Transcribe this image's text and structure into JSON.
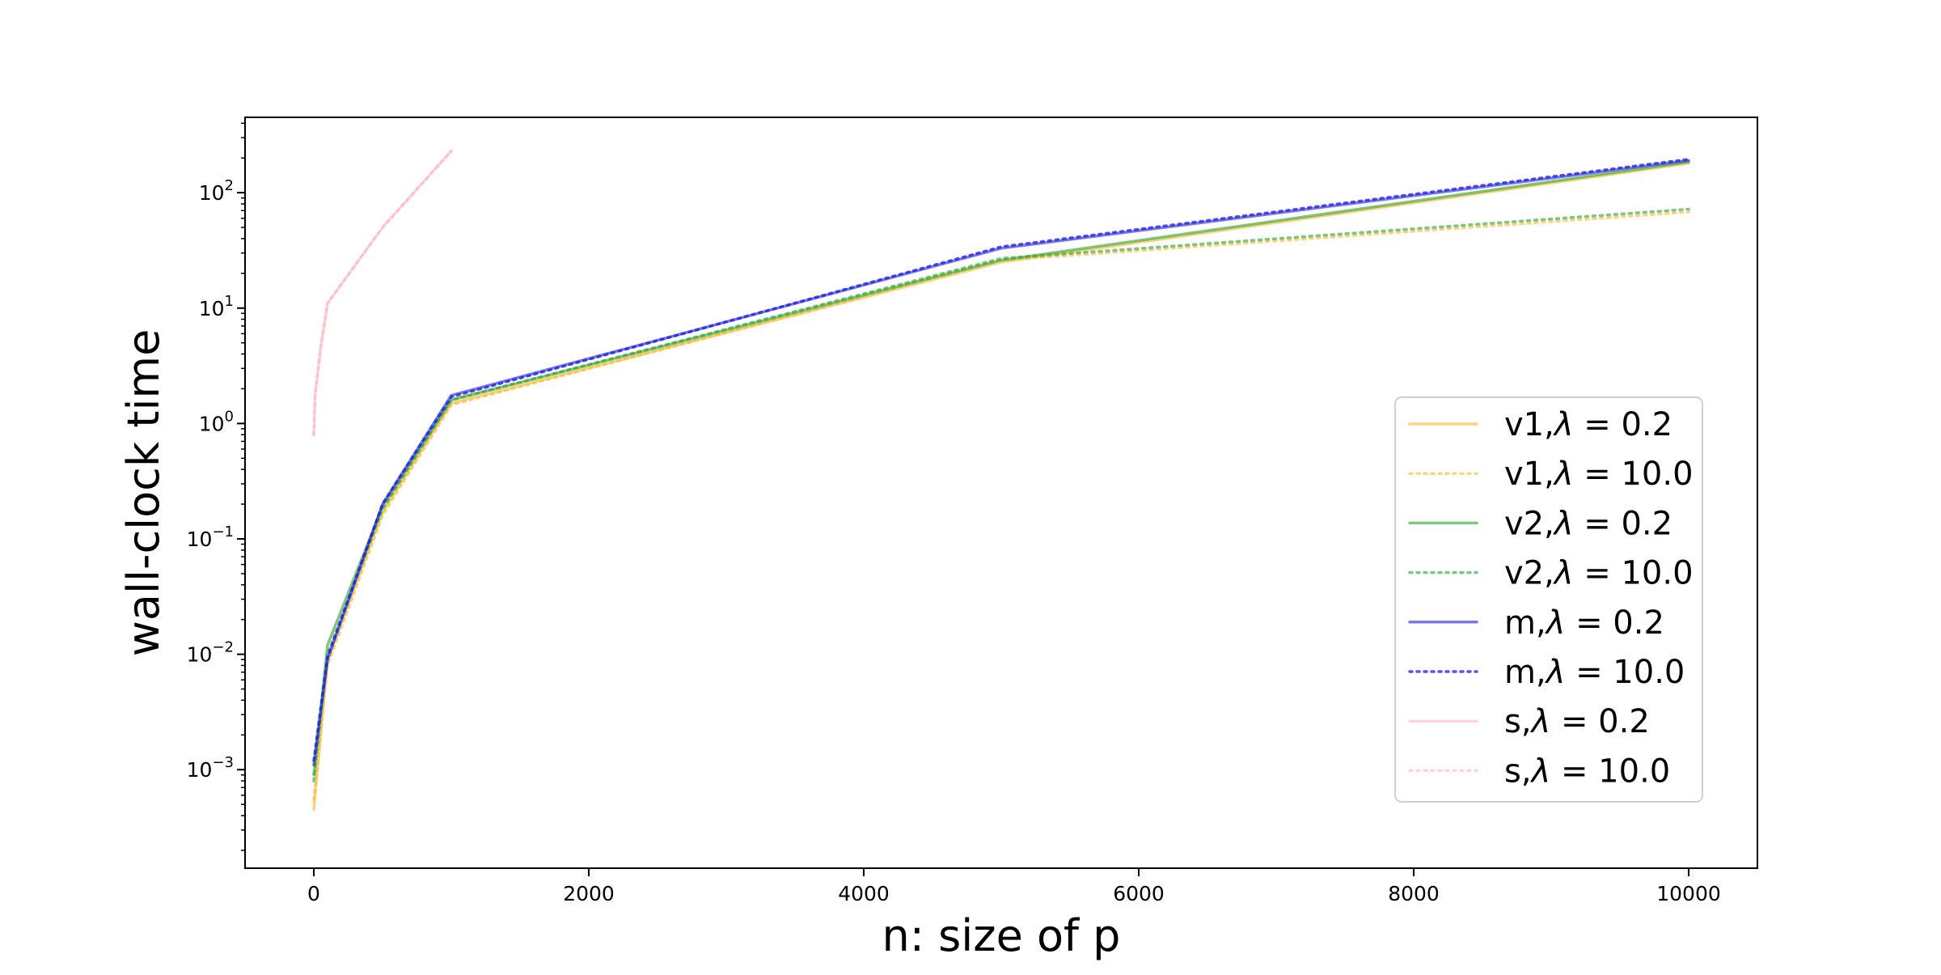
{
  "chart_data": {
    "type": "line",
    "title": "",
    "xlabel": "n: size of p",
    "ylabel": "wall-clock time",
    "xscale": "linear",
    "yscale": "log",
    "xlim": [
      -500,
      10500
    ],
    "ylim": [
      0.00014,
      450
    ],
    "xticks": [
      0,
      2000,
      4000,
      6000,
      8000,
      10000
    ],
    "xtick_labels": [
      "0",
      "2000",
      "4000",
      "6000",
      "8000",
      "10000"
    ],
    "yticks": [
      0.001,
      0.01,
      0.1,
      1,
      10,
      100
    ],
    "ytick_labels": [
      {
        "base": "10",
        "exp": "−3"
      },
      {
        "base": "10",
        "exp": "−2"
      },
      {
        "base": "10",
        "exp": "−1"
      },
      {
        "base": "10",
        "exp": "0"
      },
      {
        "base": "10",
        "exp": "1"
      },
      {
        "base": "10",
        "exp": "2"
      }
    ],
    "grid": false,
    "legend_position": "center-right",
    "series": [
      {
        "name": "v1,λ = 0.2",
        "label_prefix": "v1,",
        "label_value": "0.2",
        "color": "#f5b731",
        "style": "solid",
        "opacity": 0.6,
        "x": [
          0,
          100,
          500,
          1000,
          5000,
          10000
        ],
        "y": [
          0.00045,
          0.009,
          0.17,
          1.5,
          25,
          180
        ]
      },
      {
        "name": "v1,λ = 10.0",
        "label_prefix": "v1,",
        "label_value": "10.0",
        "color": "#f5b731",
        "style": "dotted",
        "opacity": 0.6,
        "x": [
          0,
          100,
          500,
          1000,
          5000,
          10000
        ],
        "y": [
          0.00055,
          0.008,
          0.16,
          1.45,
          26,
          68
        ]
      },
      {
        "name": "v2,λ = 0.2",
        "label_prefix": "v2,",
        "label_value": "0.2",
        "color": "#2ca02c",
        "style": "solid",
        "opacity": 0.6,
        "x": [
          0,
          100,
          500,
          1000,
          5000,
          10000
        ],
        "y": [
          0.0009,
          0.012,
          0.19,
          1.6,
          26,
          185
        ]
      },
      {
        "name": "v2,λ = 10.0",
        "label_prefix": "v2,",
        "label_value": "10.0",
        "color": "#2ca02c",
        "style": "dotted",
        "opacity": 0.6,
        "x": [
          0,
          100,
          500,
          1000,
          5000,
          10000
        ],
        "y": [
          0.0008,
          0.01,
          0.18,
          1.6,
          27,
          72
        ]
      },
      {
        "name": "m,λ = 0.2",
        "label_prefix": "m,",
        "label_value": "0.2",
        "color": "#1f1fdf",
        "style": "solid",
        "opacity": 0.6,
        "x": [
          0,
          100,
          500,
          1000,
          5000,
          10000
        ],
        "y": [
          0.0011,
          0.009,
          0.2,
          1.75,
          33,
          190
        ]
      },
      {
        "name": "m,λ = 10.0",
        "label_prefix": "m,",
        "label_value": "10.0",
        "color": "#1f1fdf",
        "style": "dotted",
        "opacity": 0.75,
        "x": [
          0,
          100,
          500,
          1000,
          5000,
          10000
        ],
        "y": [
          0.0012,
          0.0095,
          0.2,
          1.7,
          34,
          195
        ]
      },
      {
        "name": "s,λ = 0.2",
        "label_prefix": "s,",
        "label_value": "0.2",
        "color": "#ffb0bd",
        "style": "solid",
        "opacity": 0.55,
        "x": [
          0,
          10,
          50,
          100,
          500,
          1000
        ],
        "y": [
          0.8,
          1.8,
          4.5,
          11,
          50,
          230
        ]
      },
      {
        "name": "s,λ = 10.0",
        "label_prefix": "s,",
        "label_value": "10.0",
        "color": "#ffb0bd",
        "style": "dotted",
        "opacity": 0.55,
        "x": [
          0,
          10,
          50,
          100,
          500,
          1000
        ],
        "y": [
          0.8,
          1.8,
          4.5,
          11,
          50,
          230
        ]
      }
    ]
  }
}
